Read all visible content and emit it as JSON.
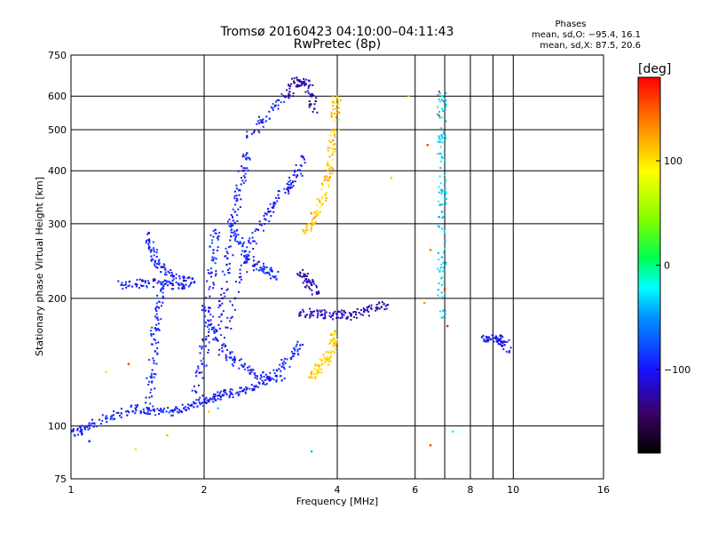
{
  "title": "Tromsø 20160423 04:10:00–04:11:43",
  "subtitle": "RwPretec (8p)",
  "phase_box": {
    "heading": "Phases",
    "line_o": "mean, sd,O: −95.4, 16.1",
    "line_x": "mean, sd,X:  87.5, 20.6"
  },
  "colorbar": {
    "label": "[deg]",
    "ticks": [
      {
        "value": 100,
        "label": "100"
      },
      {
        "value": 0,
        "label": "0"
      },
      {
        "value": -100,
        "label": "−100"
      }
    ]
  },
  "chart_data": {
    "type": "scatter",
    "xlabel": "Frequency [MHz]",
    "ylabel": "Stationary phase Virtual Height [km]",
    "xscale": "log",
    "yscale": "log",
    "xlim": [
      1,
      16
    ],
    "ylim": [
      75,
      750
    ],
    "grid": true,
    "x_ticks": [
      {
        "value": 1,
        "label": "1"
      },
      {
        "value": 2,
        "label": "2"
      },
      {
        "value": 4,
        "label": "4"
      },
      {
        "value": 6,
        "label": "6"
      },
      {
        "value": 8,
        "label": "8"
      },
      {
        "value": 10,
        "label": "10"
      },
      {
        "value": 16,
        "label": "16"
      }
    ],
    "x_grid": [
      2,
      4,
      6,
      7,
      8,
      9,
      10
    ],
    "y_ticks": [
      {
        "value": 75,
        "label": "75"
      },
      {
        "value": 100,
        "label": "100"
      },
      {
        "value": 200,
        "label": "200"
      },
      {
        "value": 300,
        "label": "300"
      },
      {
        "value": 400,
        "label": "400"
      },
      {
        "value": 500,
        "label": "500"
      },
      {
        "value": 600,
        "label": "600"
      },
      {
        "value": 750,
        "label": "750"
      }
    ],
    "y_grid": [
      100,
      200,
      300,
      400,
      500,
      600
    ],
    "colorscale": {
      "min": -180,
      "max": 180,
      "unit": "deg"
    },
    "traces": [
      {
        "phase": -95,
        "points": [
          [
            1.0,
            97
          ],
          [
            1.05,
            97
          ],
          [
            1.1,
            100
          ],
          [
            1.2,
            104
          ],
          [
            1.3,
            107
          ],
          [
            1.4,
            110
          ],
          [
            1.5,
            109
          ],
          [
            1.6,
            108
          ],
          [
            1.7,
            108
          ],
          [
            1.8,
            110
          ],
          [
            1.9,
            113
          ],
          [
            2.0,
            115
          ],
          [
            2.1,
            117
          ],
          [
            2.2,
            118
          ],
          [
            2.3,
            119
          ],
          [
            2.45,
            121
          ],
          [
            2.6,
            124
          ],
          [
            2.8,
            130
          ],
          [
            3.0,
            138
          ],
          [
            3.2,
            148
          ],
          [
            3.3,
            155
          ]
        ]
      },
      {
        "phase": -95,
        "points": [
          [
            1.3,
            215
          ],
          [
            1.4,
            216
          ],
          [
            1.5,
            217
          ],
          [
            1.6,
            216
          ],
          [
            1.7,
            215
          ],
          [
            1.8,
            214
          ]
        ]
      },
      {
        "phase": -95,
        "points": [
          [
            1.5,
            285
          ],
          [
            1.52,
            260
          ],
          [
            1.55,
            245
          ],
          [
            1.6,
            237
          ],
          [
            1.7,
            225
          ],
          [
            1.8,
            220
          ],
          [
            1.9,
            218
          ]
        ]
      },
      {
        "phase": -95,
        "points": [
          [
            1.5,
            110
          ],
          [
            1.52,
            130
          ],
          [
            1.55,
            150
          ],
          [
            1.55,
            170
          ],
          [
            1.58,
            190
          ],
          [
            1.6,
            210
          ]
        ]
      },
      {
        "phase": -95,
        "points": [
          [
            1.92,
            120
          ],
          [
            1.98,
            140
          ],
          [
            2.02,
            160
          ],
          [
            2.05,
            190
          ],
          [
            2.08,
            230
          ],
          [
            2.1,
            260
          ],
          [
            2.12,
            290
          ]
        ]
      },
      {
        "phase": -100,
        "points": [
          [
            2.1,
            160
          ],
          [
            2.2,
            200
          ],
          [
            2.25,
            240
          ],
          [
            2.3,
            280
          ],
          [
            2.35,
            320
          ],
          [
            2.4,
            360
          ],
          [
            2.45,
            400
          ],
          [
            2.5,
            440
          ]
        ]
      },
      {
        "phase": -100,
        "points": [
          [
            2.2,
            150
          ],
          [
            2.35,
            200
          ],
          [
            2.5,
            250
          ],
          [
            2.65,
            290
          ],
          [
            2.8,
            320
          ],
          [
            2.95,
            345
          ],
          [
            3.1,
            365
          ],
          [
            3.25,
            390
          ],
          [
            3.35,
            430
          ]
        ]
      },
      {
        "phase": -95,
        "points": [
          [
            2.5,
            480
          ],
          [
            2.7,
            520
          ],
          [
            2.9,
            570
          ],
          [
            3.05,
            600
          ]
        ]
      },
      {
        "phase": -125,
        "points": [
          [
            3.1,
            600
          ],
          [
            3.2,
            645
          ],
          [
            3.3,
            650
          ],
          [
            3.4,
            640
          ],
          [
            3.5,
            600
          ],
          [
            3.55,
            560
          ]
        ]
      },
      {
        "phase": -90,
        "points": [
          [
            2.3,
            300
          ],
          [
            2.4,
            270
          ],
          [
            2.5,
            250
          ],
          [
            2.6,
            240
          ],
          [
            2.7,
            235
          ],
          [
            2.8,
            230
          ],
          [
            2.9,
            225
          ]
        ]
      },
      {
        "phase": -95,
        "points": [
          [
            2.0,
            190
          ],
          [
            2.1,
            170
          ],
          [
            2.2,
            155
          ],
          [
            2.3,
            145
          ],
          [
            2.45,
            138
          ],
          [
            2.6,
            133
          ],
          [
            2.8,
            130
          ],
          [
            3.0,
            128
          ]
        ]
      },
      {
        "phase": 110,
        "points": [
          [
            3.4,
            290
          ],
          [
            3.5,
            300
          ],
          [
            3.6,
            320
          ],
          [
            3.7,
            345
          ],
          [
            3.8,
            380
          ],
          [
            3.85,
            410
          ],
          [
            3.9,
            450
          ],
          [
            3.95,
            500
          ],
          [
            3.97,
            560
          ],
          [
            4.0,
            600
          ]
        ]
      },
      {
        "phase": -125,
        "points": [
          [
            3.3,
            230
          ],
          [
            3.4,
            222
          ],
          [
            3.5,
            215
          ],
          [
            3.6,
            205
          ]
        ]
      },
      {
        "phase": -120,
        "points": [
          [
            3.3,
            185
          ],
          [
            3.5,
            184
          ],
          [
            3.7,
            183
          ],
          [
            3.9,
            182
          ],
          [
            4.1,
            184
          ],
          [
            4.3,
            182
          ],
          [
            4.6,
            186
          ],
          [
            4.9,
            190
          ],
          [
            5.2,
            193
          ]
        ]
      },
      {
        "phase": 105,
        "points": [
          [
            3.5,
            130
          ],
          [
            3.6,
            135
          ],
          [
            3.7,
            140
          ],
          [
            3.8,
            145
          ],
          [
            3.9,
            150
          ],
          [
            3.92,
            160
          ],
          [
            3.95,
            165
          ]
        ]
      },
      {
        "phase": -30,
        "points": [
          [
            6.9,
            600
          ],
          [
            6.9,
            560
          ],
          [
            6.9,
            480
          ],
          [
            6.9,
            430
          ],
          [
            6.9,
            360
          ],
          [
            6.9,
            320
          ],
          [
            6.9,
            250
          ],
          [
            6.9,
            215
          ],
          [
            6.9,
            180
          ]
        ]
      },
      {
        "phase": -100,
        "points": [
          [
            8.5,
            162
          ],
          [
            8.9,
            160
          ],
          [
            9.3,
            160
          ],
          [
            9.5,
            158
          ],
          [
            9.8,
            150
          ]
        ]
      }
    ],
    "outliers": [
      {
        "x": 1.1,
        "y": 92,
        "phase": -100
      },
      {
        "x": 1.2,
        "y": 134,
        "phase": 100
      },
      {
        "x": 1.35,
        "y": 140,
        "phase": 160
      },
      {
        "x": 1.4,
        "y": 88,
        "phase": 100
      },
      {
        "x": 1.65,
        "y": 95,
        "phase": 40
      },
      {
        "x": 2.05,
        "y": 108,
        "phase": 110
      },
      {
        "x": 2.15,
        "y": 110,
        "phase": -30
      },
      {
        "x": 3.5,
        "y": 87,
        "phase": -40
      },
      {
        "x": 5.3,
        "y": 385,
        "phase": 110
      },
      {
        "x": 5.8,
        "y": 600,
        "phase": 110
      },
      {
        "x": 6.3,
        "y": 195,
        "phase": 130
      },
      {
        "x": 6.4,
        "y": 460,
        "phase": 160
      },
      {
        "x": 6.5,
        "y": 260,
        "phase": 140
      },
      {
        "x": 6.5,
        "y": 90,
        "phase": 160
      },
      {
        "x": 6.8,
        "y": 615,
        "phase": 160
      },
      {
        "x": 6.8,
        "y": 540,
        "phase": 150
      },
      {
        "x": 7.0,
        "y": 210,
        "phase": 170
      },
      {
        "x": 7.1,
        "y": 172,
        "phase": 170
      },
      {
        "x": 7.3,
        "y": 97,
        "phase": -20
      }
    ]
  }
}
